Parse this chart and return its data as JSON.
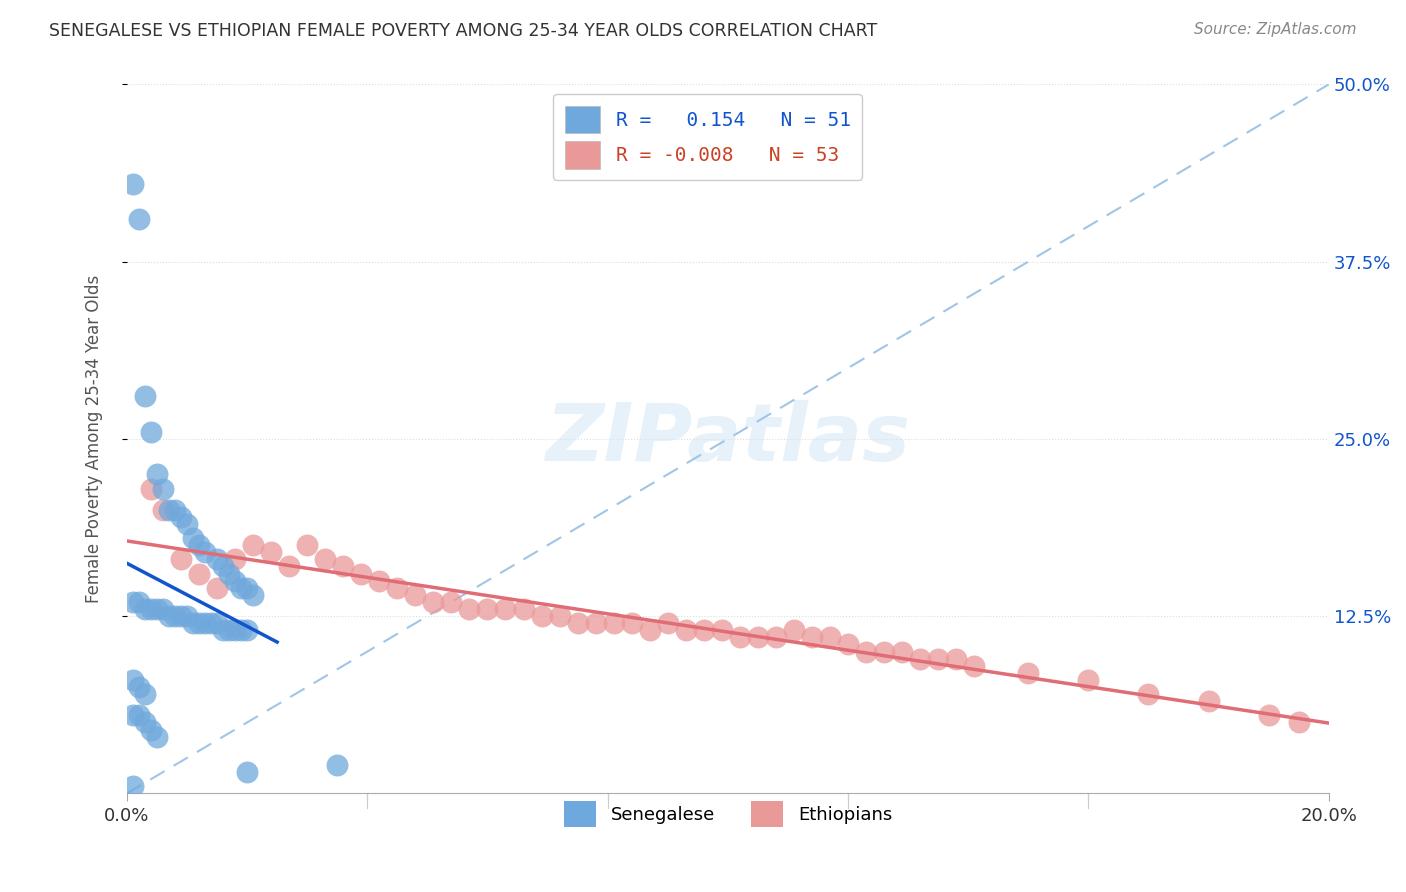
{
  "title": "SENEGALESE VS ETHIOPIAN FEMALE POVERTY AMONG 25-34 YEAR OLDS CORRELATION CHART",
  "source": "Source: ZipAtlas.com",
  "ylabel": "Female Poverty Among 25-34 Year Olds",
  "xlim": [
    0.0,
    0.2
  ],
  "ylim": [
    0.0,
    0.5
  ],
  "xticks": [
    0.0,
    0.04,
    0.08,
    0.12,
    0.16,
    0.2
  ],
  "xticklabels": [
    "0.0%",
    "",
    "",
    "",
    "",
    "20.0%"
  ],
  "yticks_right": [
    0.125,
    0.25,
    0.375,
    0.5
  ],
  "ytick_right_labels": [
    "12.5%",
    "25.0%",
    "37.5%",
    "50.0%"
  ],
  "senegalese_color": "#6fa8dc",
  "ethiopian_color": "#ea9999",
  "senegalese_line_color": "#1155cc",
  "ethiopian_line_color": "#e06c75",
  "diagonal_line_color": "#9fc5e8",
  "R_senegalese": 0.154,
  "N_senegalese": 51,
  "R_ethiopian": -0.008,
  "N_ethiopian": 53,
  "background_color": "#ffffff",
  "grid_color": "#dddddd",
  "watermark_text": "ZIPatlas",
  "senegalese_x": [
    0.001,
    0.002,
    0.003,
    0.004,
    0.005,
    0.006,
    0.007,
    0.008,
    0.009,
    0.01,
    0.011,
    0.012,
    0.013,
    0.015,
    0.016,
    0.017,
    0.018,
    0.019,
    0.02,
    0.021,
    0.001,
    0.002,
    0.003,
    0.004,
    0.005,
    0.006,
    0.007,
    0.008,
    0.009,
    0.01,
    0.011,
    0.012,
    0.013,
    0.014,
    0.015,
    0.016,
    0.017,
    0.018,
    0.019,
    0.02,
    0.001,
    0.002,
    0.003,
    0.001,
    0.002,
    0.003,
    0.004,
    0.005,
    0.035,
    0.02,
    0.001
  ],
  "senegalese_y": [
    0.43,
    0.405,
    0.28,
    0.255,
    0.225,
    0.215,
    0.2,
    0.2,
    0.195,
    0.19,
    0.18,
    0.175,
    0.17,
    0.165,
    0.16,
    0.155,
    0.15,
    0.145,
    0.145,
    0.14,
    0.135,
    0.135,
    0.13,
    0.13,
    0.13,
    0.13,
    0.125,
    0.125,
    0.125,
    0.125,
    0.12,
    0.12,
    0.12,
    0.12,
    0.12,
    0.115,
    0.115,
    0.115,
    0.115,
    0.115,
    0.08,
    0.075,
    0.07,
    0.055,
    0.055,
    0.05,
    0.045,
    0.04,
    0.02,
    0.015,
    0.005
  ],
  "ethiopian_x": [
    0.004,
    0.006,
    0.009,
    0.012,
    0.015,
    0.018,
    0.021,
    0.024,
    0.027,
    0.03,
    0.033,
    0.036,
    0.039,
    0.042,
    0.045,
    0.048,
    0.051,
    0.054,
    0.057,
    0.06,
    0.063,
    0.066,
    0.069,
    0.072,
    0.075,
    0.078,
    0.081,
    0.084,
    0.087,
    0.09,
    0.093,
    0.096,
    0.099,
    0.102,
    0.105,
    0.108,
    0.111,
    0.114,
    0.117,
    0.12,
    0.123,
    0.126,
    0.129,
    0.132,
    0.135,
    0.138,
    0.141,
    0.15,
    0.16,
    0.17,
    0.18,
    0.19,
    0.195
  ],
  "ethiopian_y": [
    0.215,
    0.2,
    0.165,
    0.155,
    0.145,
    0.165,
    0.175,
    0.17,
    0.16,
    0.175,
    0.165,
    0.16,
    0.155,
    0.15,
    0.145,
    0.14,
    0.135,
    0.135,
    0.13,
    0.13,
    0.13,
    0.13,
    0.125,
    0.125,
    0.12,
    0.12,
    0.12,
    0.12,
    0.115,
    0.12,
    0.115,
    0.115,
    0.115,
    0.11,
    0.11,
    0.11,
    0.115,
    0.11,
    0.11,
    0.105,
    0.1,
    0.1,
    0.1,
    0.095,
    0.095,
    0.095,
    0.09,
    0.085,
    0.08,
    0.07,
    0.065,
    0.055,
    0.05
  ]
}
